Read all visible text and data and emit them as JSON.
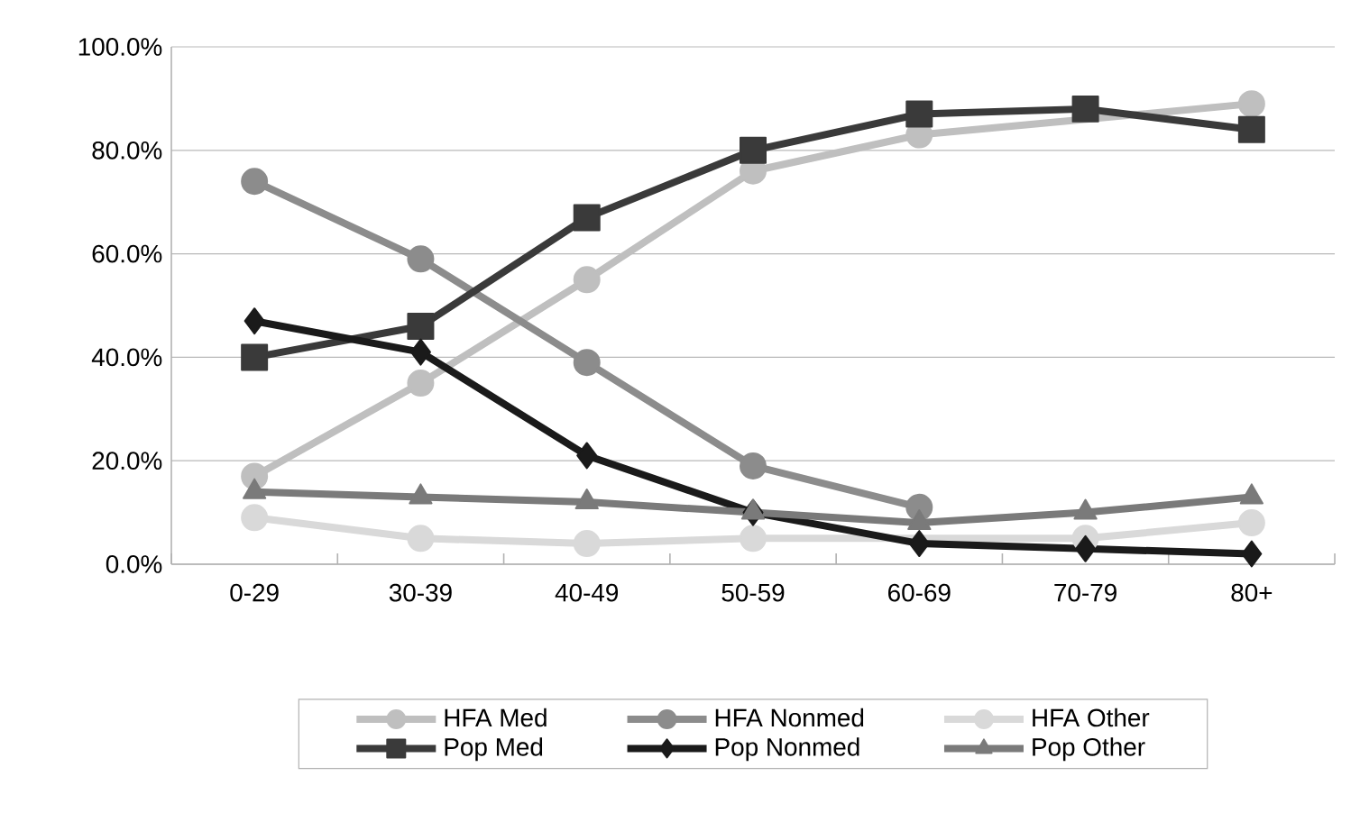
{
  "chart_data": {
    "type": "line",
    "categories": [
      "0-29",
      "30-39",
      "40-49",
      "50-59",
      "60-69",
      "70-79",
      "80+"
    ],
    "series": [
      {
        "name": "HFA Med",
        "color": "#bfbfbf",
        "marker": "circle",
        "values": [
          17,
          35,
          55,
          76,
          83,
          null,
          89
        ]
      },
      {
        "name": "HFA Nonmed",
        "color": "#8c8c8c",
        "marker": "circle",
        "values": [
          74,
          59,
          39,
          19,
          11,
          null,
          null
        ]
      },
      {
        "name": "HFA Other",
        "color": "#d9d9d9",
        "marker": "circle",
        "values": [
          9,
          5,
          4,
          5,
          null,
          5,
          8
        ]
      },
      {
        "name": "Pop Med",
        "color": "#3a3a3a",
        "marker": "square",
        "values": [
          40,
          46,
          67,
          80,
          87,
          88,
          84
        ]
      },
      {
        "name": "Pop Nonmed",
        "color": "#1a1a1a",
        "marker": "diamond",
        "values": [
          47,
          41,
          21,
          10,
          4,
          3,
          2
        ]
      },
      {
        "name": "Pop Other",
        "color": "#7a7a7a",
        "marker": "triangle",
        "values": [
          14,
          13,
          12,
          10,
          8,
          10,
          13
        ]
      }
    ],
    "ylim": [
      0,
      100
    ],
    "yticks": [
      {
        "value": 0,
        "label": "0.0%"
      },
      {
        "value": 20,
        "label": "20.0%"
      },
      {
        "value": 40,
        "label": "40.0%"
      },
      {
        "value": 60,
        "label": "60.0%"
      },
      {
        "value": 80,
        "label": "80.0%"
      },
      {
        "value": 100,
        "label": "100.0%"
      }
    ],
    "grid": "y",
    "legend": "bottom"
  }
}
